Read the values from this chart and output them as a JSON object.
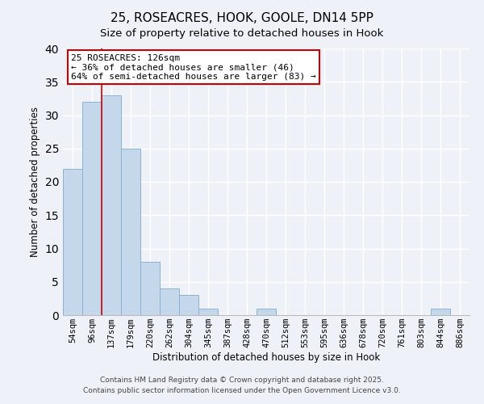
{
  "title": "25, ROSEACRES, HOOK, GOOLE, DN14 5PP",
  "subtitle": "Size of property relative to detached houses in Hook",
  "xlabel": "Distribution of detached houses by size in Hook",
  "ylabel": "Number of detached properties",
  "bin_labels": [
    "54sqm",
    "96sqm",
    "137sqm",
    "179sqm",
    "220sqm",
    "262sqm",
    "304sqm",
    "345sqm",
    "387sqm",
    "428sqm",
    "470sqm",
    "512sqm",
    "553sqm",
    "595sqm",
    "636sqm",
    "678sqm",
    "720sqm",
    "761sqm",
    "803sqm",
    "844sqm",
    "886sqm"
  ],
  "bar_heights": [
    22,
    32,
    33,
    25,
    8,
    4,
    3,
    1,
    0,
    0,
    1,
    0,
    0,
    0,
    0,
    0,
    0,
    0,
    0,
    1,
    0
  ],
  "bar_color": "#c5d8eb",
  "bar_edge_color": "#8ab4d4",
  "background_color": "#eef2f8",
  "grid_color": "#ffffff",
  "annotation_title": "25 ROSEACRES: 126sqm",
  "annotation_line1": "← 36% of detached houses are smaller (46)",
  "annotation_line2": "64% of semi-detached houses are larger (83) →",
  "annotation_box_facecolor": "#ffffff",
  "annotation_box_edgecolor": "#cc0000",
  "property_line_color": "#cc0000",
  "footer1": "Contains HM Land Registry data © Crown copyright and database right 2025.",
  "footer2": "Contains public sector information licensed under the Open Government Licence v3.0.",
  "ylim": [
    0,
    40
  ],
  "yticks": [
    0,
    5,
    10,
    15,
    20,
    25,
    30,
    35,
    40
  ],
  "title_fontsize": 11,
  "subtitle_fontsize": 9.5,
  "axis_label_fontsize": 8.5,
  "tick_fontsize": 7.5,
  "annotation_fontsize": 8,
  "footer_fontsize": 6.5
}
